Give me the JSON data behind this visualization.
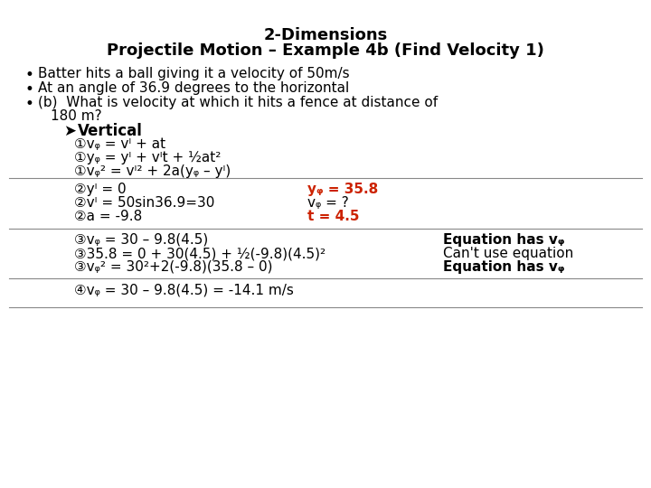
{
  "title_line1": "2-Dimensions",
  "title_line2": "Projectile Motion – Example 4b (Find Velocity 1)",
  "background_color": "#ffffff",
  "text_color": "#000000",
  "red_color": "#cc2200",
  "bullet_points": [
    "Batter hits a ball giving it a velocity of 50m/s",
    "At an angle of 36.9 degrees to the horizontal",
    "(b)  What is velocity at which it hits a fence at distance of\n      180 m?"
  ],
  "arrow_label": "➤Vertical",
  "eq1": "①vᵩ = vᴵ + at",
  "eq2": "①yᵩ = yᴵ + vᴵt + ½at²",
  "eq3": "①vᵩ² = vᴵ² + 2a(yᵩ – yᴵ)",
  "section2_lines": [
    [
      "②yᴵ = 0",
      "yᵩ = 35.8",
      ""
    ],
    [
      "②vᴵ = 50sin36.9=30",
      "vᵩ = ?",
      ""
    ],
    [
      "②a = -9.8",
      "t = 4.5",
      ""
    ]
  ],
  "section3_lines": [
    [
      "③vᵩ = 30 – 9.8(4.5)",
      "",
      "Equation has vᵩ"
    ],
    [
      "③35.8 = 0 + 30(4.5) + ½(-9.8)(4.5)²",
      "",
      "Can't use equation"
    ],
    [
      "③vᵩ² = 30²+2(-9.8)(35.8 – 0)",
      "",
      "Equation has vᵩ"
    ]
  ],
  "section4_line": "④vᵩ = 30 – 9.8(4.5) = -14.1 m/s"
}
